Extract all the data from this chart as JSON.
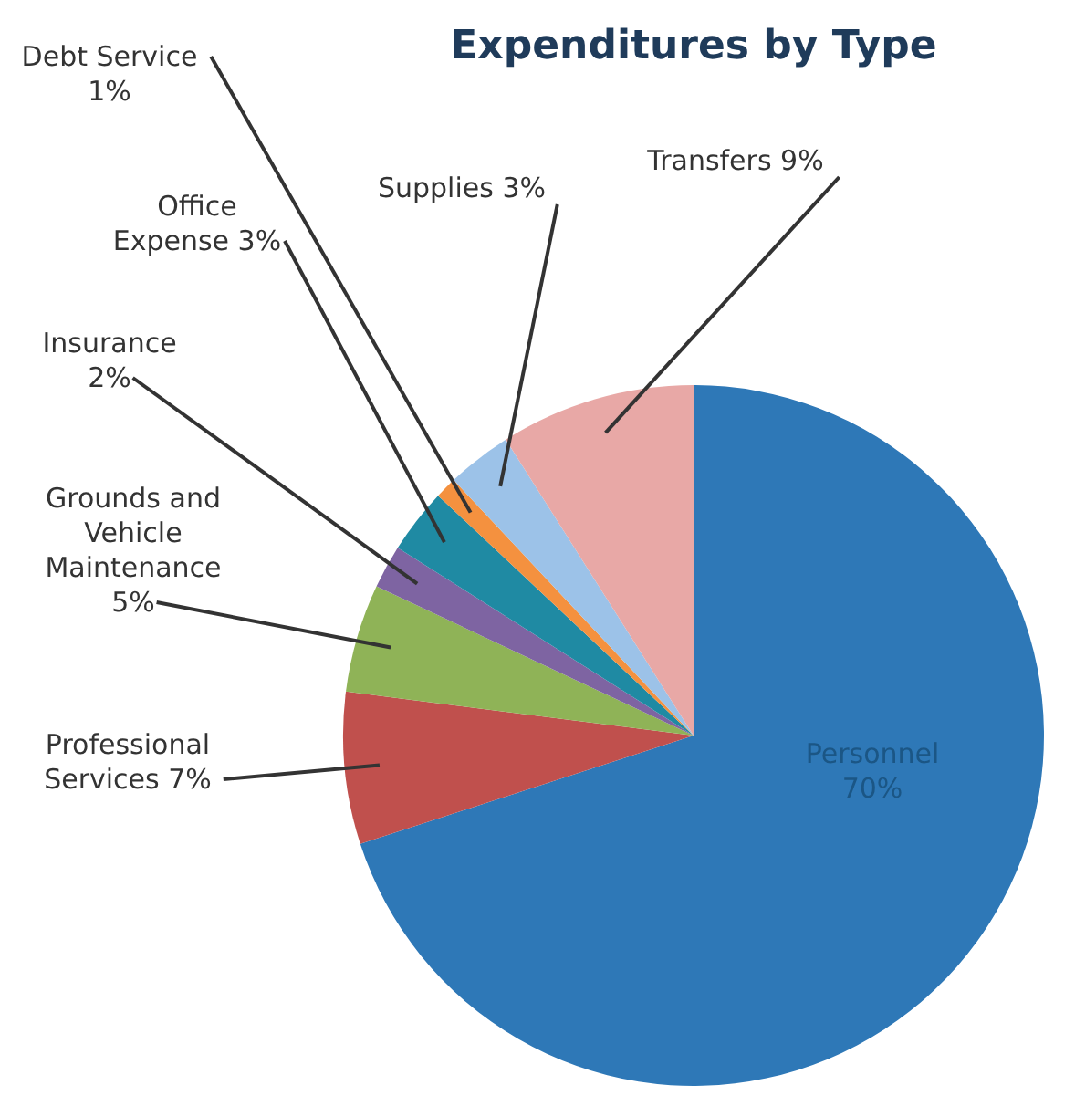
{
  "chart_data": {
    "type": "pie",
    "title": "Expenditures by Type",
    "categories": [
      "Personnel",
      "Professional Services",
      "Grounds and Vehicle Maintenance",
      "Insurance",
      "Office Expense",
      "Debt Service",
      "Supplies",
      "Transfers"
    ],
    "values": [
      70,
      7,
      5,
      2,
      3,
      1,
      3,
      9
    ],
    "value_labels": [
      "70%",
      "7%",
      "5%",
      "2%",
      "3%",
      "1%",
      "3%",
      "9%"
    ],
    "colors": [
      "#2e78b7",
      "#c0504d",
      "#8fb357",
      "#7e64a2",
      "#1f8aa3",
      "#f4913f",
      "#9cc2e8",
      "#e8a8a6"
    ]
  }
}
